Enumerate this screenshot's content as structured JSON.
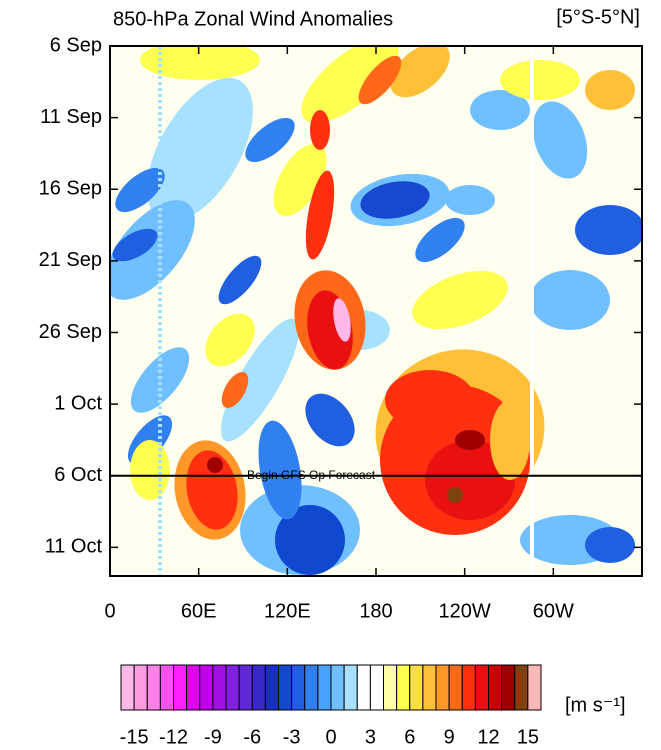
{
  "chart_data": {
    "type": "hovmoller",
    "title": "850-hPa Zonal Wind Anomalies",
    "region": "[5°S-5°N]",
    "annotation": "Begin GFS Op Forecast",
    "annotation_y": 30,
    "xlim": [
      0,
      360
    ],
    "xticks": [
      0,
      {
        "value": 60,
        "label": "60E"
      },
      {
        "value": 120,
        "label": "120E"
      },
      180,
      {
        "value": 240,
        "label": "120W"
      },
      {
        "value": 300,
        "label": "60W"
      }
    ],
    "ylim": [
      0,
      37
    ],
    "yticks": [
      {
        "value": 0,
        "label": "6 Sep"
      },
      {
        "value": 5,
        "label": "11 Sep"
      },
      {
        "value": 10,
        "label": "16 Sep"
      },
      {
        "value": 15,
        "label": "21 Sep"
      },
      {
        "value": 20,
        "label": "26 Sep"
      },
      {
        "value": 25,
        "label": "1 Oct"
      },
      {
        "value": 30,
        "label": "6 Oct"
      },
      {
        "value": 35,
        "label": "11 Oct"
      }
    ],
    "colorbar": {
      "range": [
        -16,
        16
      ],
      "ticks": [
        -15,
        -12,
        -9,
        -6,
        -3,
        0,
        3,
        6,
        9,
        12,
        15
      ],
      "units": "[m s⁻¹]",
      "colors": [
        "#ffb8e8",
        "#ff9ce0",
        "#ff80e8",
        "#ff50f0",
        "#ff20ff",
        "#e000f0",
        "#c000e8",
        "#a010e0",
        "#8020e0",
        "#6028d8",
        "#3828c8",
        "#1830c0",
        "#1048d0",
        "#2060e0",
        "#3080f0",
        "#48a0ff",
        "#70c0ff",
        "#a8e0ff",
        "#ffffff",
        "#ffffff",
        "#ffffa8",
        "#ffff50",
        "#f8e040",
        "#ffc038",
        "#ff9828",
        "#ff6818",
        "#ff3010",
        "#e81010",
        "#c80000",
        "#a00000",
        "#804010",
        "#ffb8b8"
      ]
    }
  }
}
